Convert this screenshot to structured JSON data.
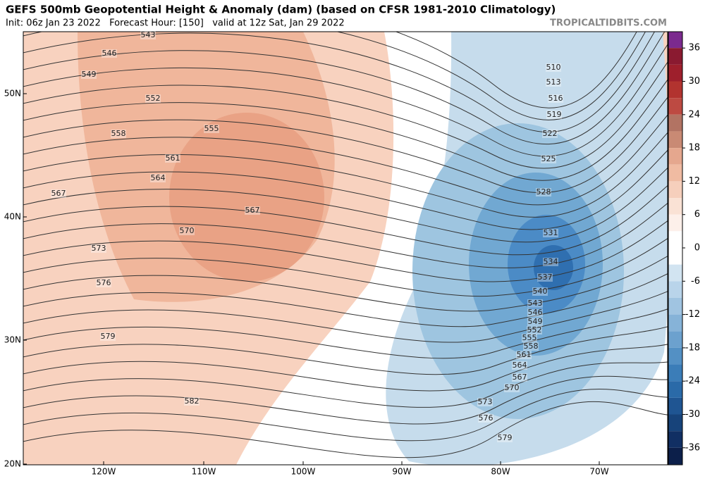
{
  "header": {
    "title": "GEFS 500mb Geopotential Height & Anomaly (dam) (based on CFSR 1981-2010 Climatology)",
    "subtitle": "Init: 06z Jan 23 2022   Forecast Hour: [150]   valid at 12z Sat, Jan 29 2022",
    "source": "TROPICALTIDBITS.COM"
  },
  "map": {
    "latitude_labels": [
      "50N",
      "40N",
      "30N",
      "20N"
    ],
    "longitude_labels": [
      "120W",
      "110W",
      "100W",
      "90W",
      "80W",
      "70W"
    ],
    "contour_labels": [
      543,
      546,
      549,
      552,
      555,
      558,
      561,
      564,
      567,
      567,
      570,
      573,
      576,
      579,
      582,
      510,
      513,
      516,
      519,
      522,
      525,
      528,
      531,
      534,
      537,
      540,
      543,
      546,
      549,
      552,
      555,
      558,
      561,
      564,
      567,
      570,
      573,
      576,
      579
    ]
  },
  "colorbar": {
    "ticks": [
      36,
      30,
      24,
      18,
      12,
      6,
      0,
      -6,
      -12,
      -18,
      -24,
      -30,
      -36
    ]
  }
}
